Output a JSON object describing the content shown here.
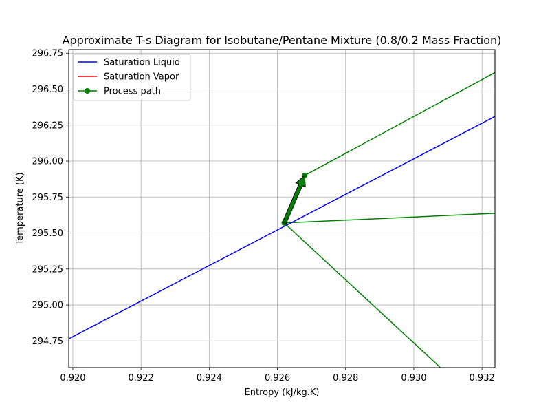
{
  "chart_data": {
    "type": "line",
    "title": "Approximate T-s Diagram for Isobutane/Pentane Mixture (0.8/0.2 Mass Fraction)",
    "xlabel": "Entropy (kJ/kg.K)",
    "ylabel": "Temperature (K)",
    "xlim": [
      0.91988,
      0.93238
    ],
    "ylim": [
      294.565,
      296.775
    ],
    "xticks": [
      0.92,
      0.922,
      0.924,
      0.926,
      0.928,
      0.93,
      0.932
    ],
    "xtick_labels": [
      "0.920",
      "0.922",
      "0.924",
      "0.926",
      "0.928",
      "0.930",
      "0.932"
    ],
    "yticks": [
      294.75,
      295.0,
      295.25,
      295.5,
      295.75,
      296.0,
      296.25,
      296.5,
      296.75
    ],
    "ytick_labels": [
      "294.75",
      "295.00",
      "295.25",
      "295.50",
      "295.75",
      "296.00",
      "296.25",
      "296.50",
      "296.75"
    ],
    "grid": true,
    "legend_position": "top-left",
    "series": [
      {
        "name": "Saturation Liquid",
        "color": "#0000ff",
        "marker": false,
        "x": [
          0.91988,
          0.93238
        ],
        "y": [
          294.765,
          296.31
        ]
      },
      {
        "name": "Saturation Vapor",
        "color": "#ff0000",
        "marker": false,
        "x": [],
        "y": []
      },
      {
        "name": "Process path",
        "color": "#008000",
        "marker": true,
        "x": [
          0.9262,
          0.9268
        ],
        "y": [
          295.57,
          295.9
        ]
      }
    ],
    "extra_lines": [
      {
        "color": "#008000",
        "x": [
          0.9268,
          0.93238
        ],
        "y": [
          295.9,
          296.615
        ]
      },
      {
        "color": "#008000",
        "x": [
          0.9262,
          0.93238
        ],
        "y": [
          295.57,
          295.637
        ]
      },
      {
        "color": "#008000",
        "x": [
          0.9262,
          0.93078
        ],
        "y": [
          295.57,
          294.565
        ]
      }
    ],
    "arrow": {
      "color": "#008000",
      "x0": 0.9262,
      "y0": 295.57,
      "x1": 0.9268,
      "y1": 295.9
    }
  }
}
